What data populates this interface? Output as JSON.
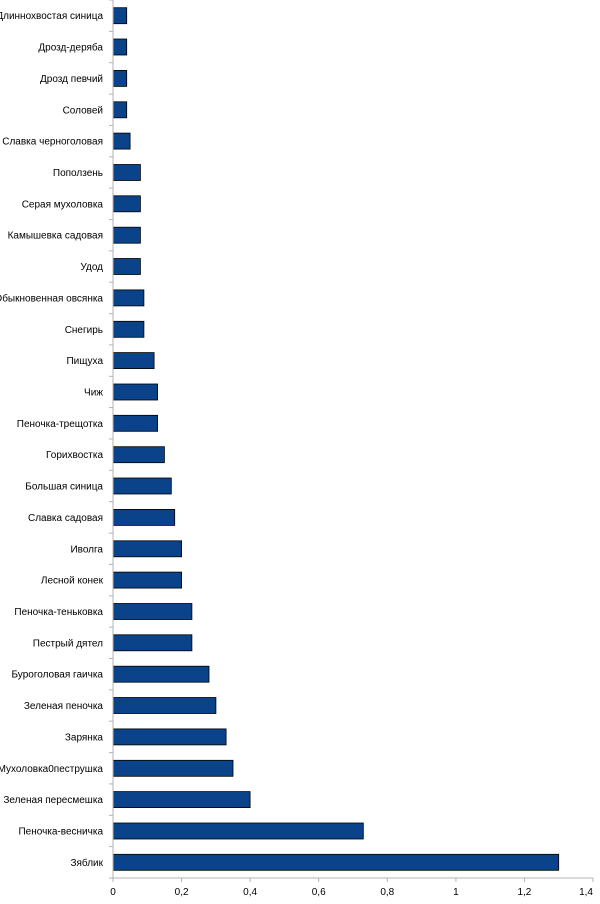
{
  "chart_data": {
    "type": "bar",
    "orientation": "horizontal",
    "title": "",
    "xlabel": "",
    "ylabel": "",
    "categories": [
      "Длиннохвостая синица",
      "Дрозд-деряба",
      "Дрозд певчий",
      "Соловей",
      "Славка черноголовая",
      "Поползень",
      "Серая мухоловка",
      "Камышевка садовая",
      "Удод",
      "Обыкновенная овсянка",
      "Снегирь",
      "Пищуха",
      "Чиж",
      "Пеночка-трещотка",
      "Горихвостка",
      "Большая синица",
      "Славка садовая",
      "Иволга",
      "Лесной конек",
      "Пеночка-теньковка",
      "Пестрый дятел",
      "Буроголовая гаичка",
      "Зеленая пеночка",
      "Зарянка",
      "Мухоловка0пеструшка",
      "Зеленая пересмешка",
      "Пеночка-весничка",
      "Зяблик"
    ],
    "values": [
      0.04,
      0.04,
      0.04,
      0.04,
      0.05,
      0.08,
      0.08,
      0.08,
      0.08,
      0.09,
      0.09,
      0.12,
      0.13,
      0.13,
      0.15,
      0.17,
      0.18,
      0.2,
      0.2,
      0.23,
      0.23,
      0.28,
      0.3,
      0.33,
      0.35,
      0.4,
      0.73,
      1.3
    ],
    "xlim": [
      0,
      1.4
    ],
    "xticks": [
      "0",
      "0,2",
      "0,4",
      "0,6",
      "0,8",
      "1",
      "1,2",
      "1,4"
    ],
    "grid": false,
    "legend": "none",
    "bar_color": "#0a4389",
    "bar_stroke": "#000000"
  }
}
